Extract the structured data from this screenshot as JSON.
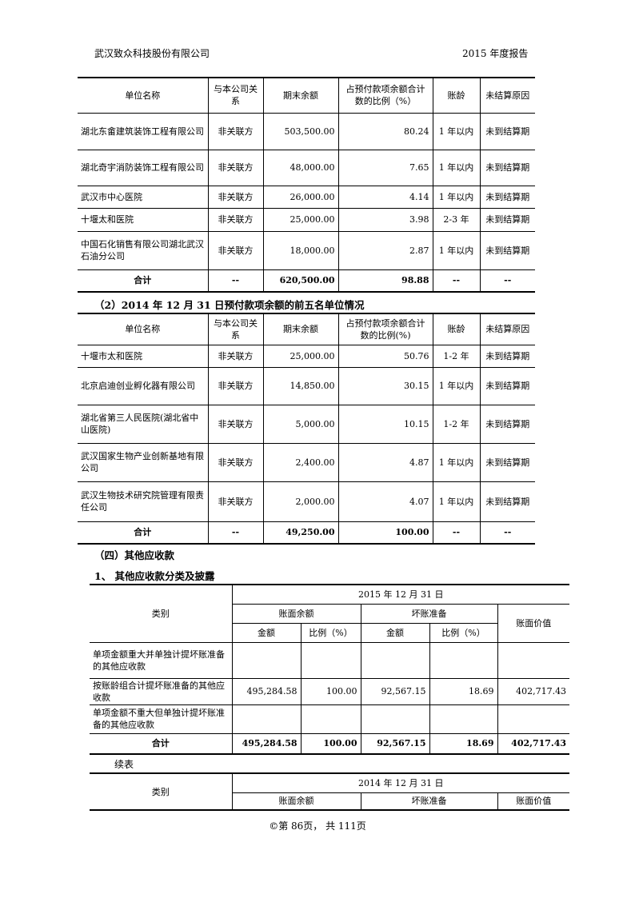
{
  "header": {
    "company": "武汉致众科技股份有限公司",
    "report": "2015 年度报告"
  },
  "table1": {
    "headers": [
      "单位名称",
      "与本公司关系",
      "期末余额",
      "占预付款项余额合计数的比例（%）",
      "账龄",
      "未结算原因"
    ],
    "rows": [
      [
        "湖北东畲建筑装饰工程有限公司",
        "非关联方",
        "503,500.00",
        "80.24",
        "1 年以内",
        "未到结算期"
      ],
      [
        "湖北奇宇消防装饰工程有限公司",
        "非关联方",
        "48,000.00",
        "7.65",
        "1 年以内",
        "未到结算期"
      ],
      [
        "武汉市中心医院",
        "非关联方",
        "26,000.00",
        "4.14",
        "1 年以内",
        "未到结算期"
      ],
      [
        "十堰太和医院",
        "非关联方",
        "25,000.00",
        "3.98",
        "2-3 年",
        "未到结算期"
      ],
      [
        "中国石化销售有限公司湖北武汉石油分公司",
        "非关联方",
        "18,000.00",
        "2.87",
        "1 年以内",
        "未到结算期"
      ]
    ],
    "total": [
      "合计",
      "--",
      "620,500.00",
      "98.88",
      "--",
      "--"
    ]
  },
  "heading2": "（2）2014 年 12 月 31 日预付款项余额的前五名单位情况",
  "table2": {
    "headers": [
      "单位名称",
      "与本公司关系",
      "期末余额",
      "占预付款项余额合计数的比例(%)",
      "账龄",
      "未结算原因"
    ],
    "rows": [
      [
        "十堰市太和医院",
        "非关联方",
        "25,000.00",
        "50.76",
        "1-2 年",
        "未到结算期"
      ],
      [
        "北京启迪创业孵化器有限公司",
        "非关联方",
        "14,850.00",
        "30.15",
        "1 年以内",
        "未到结算期"
      ],
      [
        "湖北省第三人民医院(湖北省中山医院)",
        "非关联方",
        "5,000.00",
        "10.15",
        "1-2 年",
        "未到结算期"
      ],
      [
        "武汉国家生物产业创新基地有限公司",
        "非关联方",
        "2,400.00",
        "4.87",
        "1 年以内",
        "未到结算期"
      ],
      [
        "武汉生物技术研究院管理有限责任公司",
        "非关联方",
        "2,000.00",
        "4.07",
        "1 年以内",
        "未到结算期"
      ]
    ],
    "total": [
      "合计",
      "--",
      "49,250.00",
      "100.00",
      "--",
      "--"
    ]
  },
  "section4": "（四）其他应收款",
  "section4_1": "1、  其他应收款分类及披露",
  "table3": {
    "category": "类别",
    "date": "2015 年 12 月 31 日",
    "book_balance": "账面余额",
    "bad_debt": "坏账准备",
    "book_value": "账面价值",
    "amount": "金额",
    "ratio": "比例（%）",
    "rows": [
      [
        "单项金额重大并单独计提坏账准备的其他应收款",
        "",
        "",
        "",
        "",
        ""
      ],
      [
        "按账龄组合计提坏账准备的其他应收款",
        "495,284.58",
        "100.00",
        "92,567.15",
        "18.69",
        "402,717.43"
      ],
      [
        "单项金额不重大但单独计提坏账准备的其他应收款",
        "",
        "",
        "",
        "",
        ""
      ]
    ],
    "total": [
      "合计",
      "495,284.58",
      "100.00",
      "92,567.15",
      "18.69",
      "402,717.43"
    ]
  },
  "continued": "续表",
  "table4": {
    "category": "类别",
    "date": "2014 年 12 月 31 日",
    "book_balance": "账面余额",
    "bad_debt": "坏账准备",
    "book_value": "账面价值"
  },
  "footer": "©第 86页， 共 111页"
}
